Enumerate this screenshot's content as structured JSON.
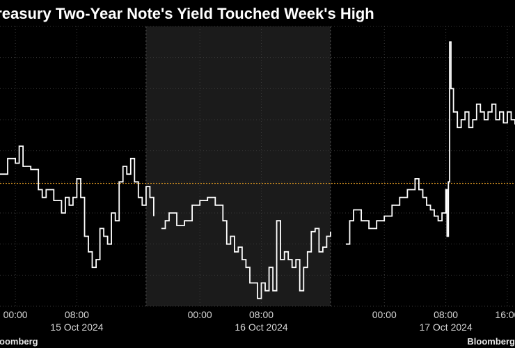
{
  "chart_data": {
    "type": "line",
    "title": "Treasury Two-Year Note's Yield Touched Week's High",
    "xlabel": "",
    "ylabel": "",
    "x_range": [
      "2024-10-14T22:00",
      "2024-10-17T17:00"
    ],
    "time_tick_labels": [
      {
        "t": "2024-10-15T00:00",
        "label": "00:00"
      },
      {
        "t": "2024-10-15T08:00",
        "label": "08:00"
      },
      {
        "t": "2024-10-16T00:00",
        "label": "00:00"
      },
      {
        "t": "2024-10-16T08:00",
        "label": "08:00"
      },
      {
        "t": "2024-10-17T00:00",
        "label": "00:00"
      },
      {
        "t": "2024-10-17T08:00",
        "label": "08:00"
      },
      {
        "t": "2024-10-17T16:00",
        "label": "16:00"
      }
    ],
    "date_labels": [
      {
        "t": "2024-10-15T08:00",
        "label": "15 Oct 2024"
      },
      {
        "t": "2024-10-16T08:00",
        "label": "16 Oct 2024"
      },
      {
        "t": "2024-10-17T08:00",
        "label": "17 Oct 2024"
      }
    ],
    "shaded_period": [
      "2024-10-15T17:00",
      "2024-10-16T17:00"
    ],
    "ylim": [
      3.88,
      4.06
    ],
    "reference_line": {
      "value": 3.959,
      "color": "#c8891e",
      "style": "dotted"
    },
    "grid": true,
    "series": [
      {
        "color": "#ffffff",
        "segments": [
          [
            [
              "2024-10-14T22:00",
              3.965
            ],
            [
              "2024-10-14T23:00",
              3.975
            ],
            [
              "2024-10-15T00:00",
              3.972
            ],
            [
              "2024-10-15T00:30",
              3.983
            ],
            [
              "2024-10-15T01:00",
              3.97
            ],
            [
              "2024-10-15T02:00",
              3.968
            ],
            [
              "2024-10-15T03:00",
              3.955
            ],
            [
              "2024-10-15T03:30",
              3.95
            ],
            [
              "2024-10-15T04:00",
              3.955
            ],
            [
              "2024-10-15T05:00",
              3.948
            ],
            [
              "2024-10-15T06:00",
              3.94
            ],
            [
              "2024-10-15T06:30",
              3.95
            ],
            [
              "2024-10-15T07:00",
              3.945
            ],
            [
              "2024-10-15T07:30",
              3.95
            ],
            [
              "2024-10-15T08:00",
              3.962
            ],
            [
              "2024-10-15T08:30",
              3.95
            ],
            [
              "2024-10-15T09:00",
              3.925
            ],
            [
              "2024-10-15T09:30",
              3.915
            ],
            [
              "2024-10-15T10:00",
              3.905
            ],
            [
              "2024-10-15T10:30",
              3.91
            ],
            [
              "2024-10-15T11:00",
              3.93
            ],
            [
              "2024-10-15T11:30",
              3.925
            ],
            [
              "2024-10-15T12:00",
              3.92
            ],
            [
              "2024-10-15T12:30",
              3.94
            ],
            [
              "2024-10-15T13:00",
              3.935
            ],
            [
              "2024-10-15T13:30",
              3.96
            ],
            [
              "2024-10-15T14:00",
              3.97
            ],
            [
              "2024-10-15T14:30",
              3.965
            ],
            [
              "2024-10-15T15:00",
              3.975
            ],
            [
              "2024-10-15T15:30",
              3.96
            ],
            [
              "2024-10-15T16:00",
              3.95
            ],
            [
              "2024-10-15T16:30",
              3.945
            ],
            [
              "2024-10-15T17:00",
              3.957
            ],
            [
              "2024-10-15T17:30",
              3.95
            ],
            [
              "2024-10-15T18:00",
              3.938
            ]
          ],
          [
            [
              "2024-10-15T19:00",
              3.93
            ],
            [
              "2024-10-15T19:30",
              3.935
            ],
            [
              "2024-10-15T20:00",
              3.94
            ],
            [
              "2024-10-15T21:00",
              3.932
            ],
            [
              "2024-10-15T22:00",
              3.935
            ],
            [
              "2024-10-15T23:00",
              3.945
            ],
            [
              "2024-10-16T00:00",
              3.948
            ],
            [
              "2024-10-16T01:00",
              3.95
            ],
            [
              "2024-10-16T02:00",
              3.945
            ],
            [
              "2024-10-16T03:00",
              3.935
            ],
            [
              "2024-10-16T03:30",
              3.92
            ],
            [
              "2024-10-16T04:00",
              3.925
            ],
            [
              "2024-10-16T04:30",
              3.915
            ],
            [
              "2024-10-16T05:00",
              3.918
            ],
            [
              "2024-10-16T05:30",
              3.91
            ],
            [
              "2024-10-16T06:00",
              3.905
            ],
            [
              "2024-10-16T06:30",
              3.895
            ],
            [
              "2024-10-16T07:00",
              3.895
            ],
            [
              "2024-10-16T07:30",
              3.885
            ],
            [
              "2024-10-16T08:00",
              3.895
            ],
            [
              "2024-10-16T08:30",
              3.89
            ],
            [
              "2024-10-16T09:00",
              3.905
            ],
            [
              "2024-10-16T09:30",
              3.89
            ],
            [
              "2024-10-16T10:00",
              3.935
            ],
            [
              "2024-10-16T10:30",
              3.91
            ],
            [
              "2024-10-16T11:00",
              3.915
            ],
            [
              "2024-10-16T11:30",
              3.91
            ],
            [
              "2024-10-16T12:00",
              3.905
            ],
            [
              "2024-10-16T12:30",
              3.91
            ],
            [
              "2024-10-16T13:00",
              3.89
            ],
            [
              "2024-10-16T13:30",
              3.905
            ],
            [
              "2024-10-16T14:00",
              3.915
            ],
            [
              "2024-10-16T14:30",
              3.928
            ],
            [
              "2024-10-16T15:00",
              3.93
            ],
            [
              "2024-10-16T15:30",
              3.915
            ],
            [
              "2024-10-16T16:00",
              3.918
            ],
            [
              "2024-10-16T16:30",
              3.925
            ],
            [
              "2024-10-16T17:00",
              3.928
            ]
          ],
          [
            [
              "2024-10-16T19:00",
              3.92
            ],
            [
              "2024-10-16T19:30",
              3.935
            ],
            [
              "2024-10-16T20:00",
              3.942
            ],
            [
              "2024-10-16T21:00",
              3.935
            ],
            [
              "2024-10-16T22:00",
              3.93
            ],
            [
              "2024-10-16T23:00",
              3.935
            ],
            [
              "2024-10-17T00:00",
              3.938
            ],
            [
              "2024-10-17T01:00",
              3.945
            ],
            [
              "2024-10-17T02:00",
              3.95
            ],
            [
              "2024-10-17T03:00",
              3.955
            ],
            [
              "2024-10-17T04:00",
              3.962
            ],
            [
              "2024-10-17T04:30",
              3.955
            ],
            [
              "2024-10-17T05:00",
              3.95
            ],
            [
              "2024-10-17T05:30",
              3.945
            ],
            [
              "2024-10-17T06:00",
              3.942
            ],
            [
              "2024-10-17T06:30",
              3.938
            ],
            [
              "2024-10-17T07:00",
              3.935
            ],
            [
              "2024-10-17T07:30",
              3.94
            ],
            [
              "2024-10-17T08:00",
              3.955
            ],
            [
              "2024-10-17T08:10",
              3.925
            ],
            [
              "2024-10-17T08:20",
              3.96
            ],
            [
              "2024-10-17T08:30",
              4.05
            ],
            [
              "2024-10-17T08:40",
              4.02
            ],
            [
              "2024-10-17T09:00",
              4.005
            ],
            [
              "2024-10-17T09:30",
              3.995
            ],
            [
              "2024-10-17T10:00",
              4.0
            ],
            [
              "2024-10-17T10:30",
              4.005
            ],
            [
              "2024-10-17T11:00",
              3.995
            ],
            [
              "2024-10-17T11:30",
              4.0
            ],
            [
              "2024-10-17T12:00",
              4.01
            ],
            [
              "2024-10-17T12:30",
              4.005
            ],
            [
              "2024-10-17T13:00",
              4.0
            ],
            [
              "2024-10-17T13:30",
              4.005
            ],
            [
              "2024-10-17T14:00",
              4.01
            ],
            [
              "2024-10-17T14:30",
              4.0
            ],
            [
              "2024-10-17T15:00",
              4.005
            ],
            [
              "2024-10-17T15:30",
              3.998
            ],
            [
              "2024-10-17T16:00",
              4.005
            ],
            [
              "2024-10-17T16:30",
              4.0
            ],
            [
              "2024-10-17T17:00",
              3.997
            ]
          ]
        ]
      }
    ],
    "footer_left": "Bloomberg",
    "footer_right": "Bloomberg"
  }
}
